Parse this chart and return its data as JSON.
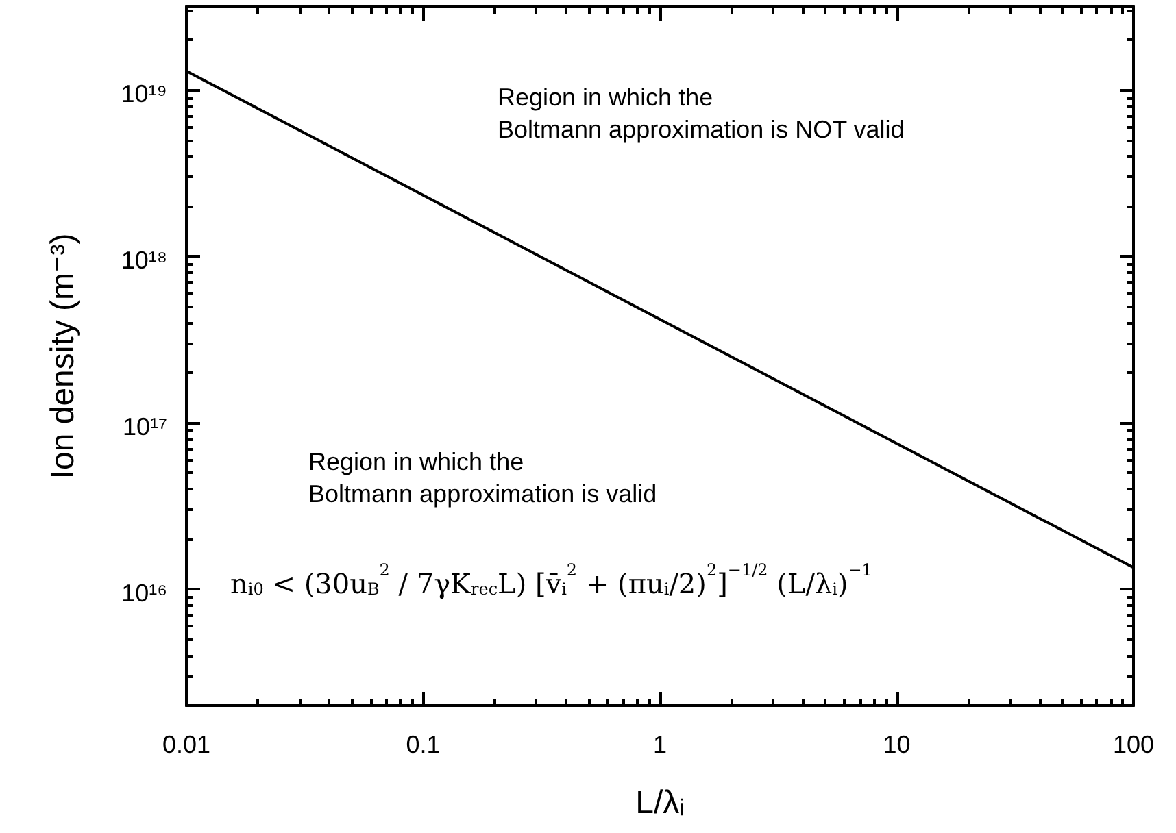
{
  "chart_data": {
    "type": "line",
    "xlabel": "L/λᵢ",
    "ylabel": "Ion density (m⁻³)",
    "log": "xy",
    "xlim": [
      0.01,
      100
    ],
    "xticks": [
      0.01,
      0.1,
      1,
      10,
      100
    ],
    "ylim": [
      2000000000000000.0,
      3.16e+19
    ],
    "yticks": [
      {
        "value": 1e+16,
        "label": "10¹⁶"
      },
      {
        "value": 1e+17,
        "label": "10¹⁷"
      },
      {
        "value": 1e+18,
        "label": "10¹⁸"
      },
      {
        "value": 1e+19,
        "label": "10¹⁹"
      }
    ],
    "x": [
      0.01,
      100
    ],
    "series": [
      {
        "color": "#000000",
        "values": [
          1.3e+19,
          1.35e+16
        ]
      }
    ],
    "marker": "none",
    "line_style": "solid",
    "annotations": [
      "Region in which the\nBoltmann approximation is NOT valid",
      "Region in which the\nBoltmann approximation is valid",
      "n$_{i0}$ < (30u$_{B}$$^{2}$ / 7γK$_{rec}$L) [v̄$_{i}$$^{2}$ + (πu$_{i}$/2)$^{2}$]$^{−1/2}$ (L/λ$_{i}$)$^{−1}$"
    ]
  }
}
